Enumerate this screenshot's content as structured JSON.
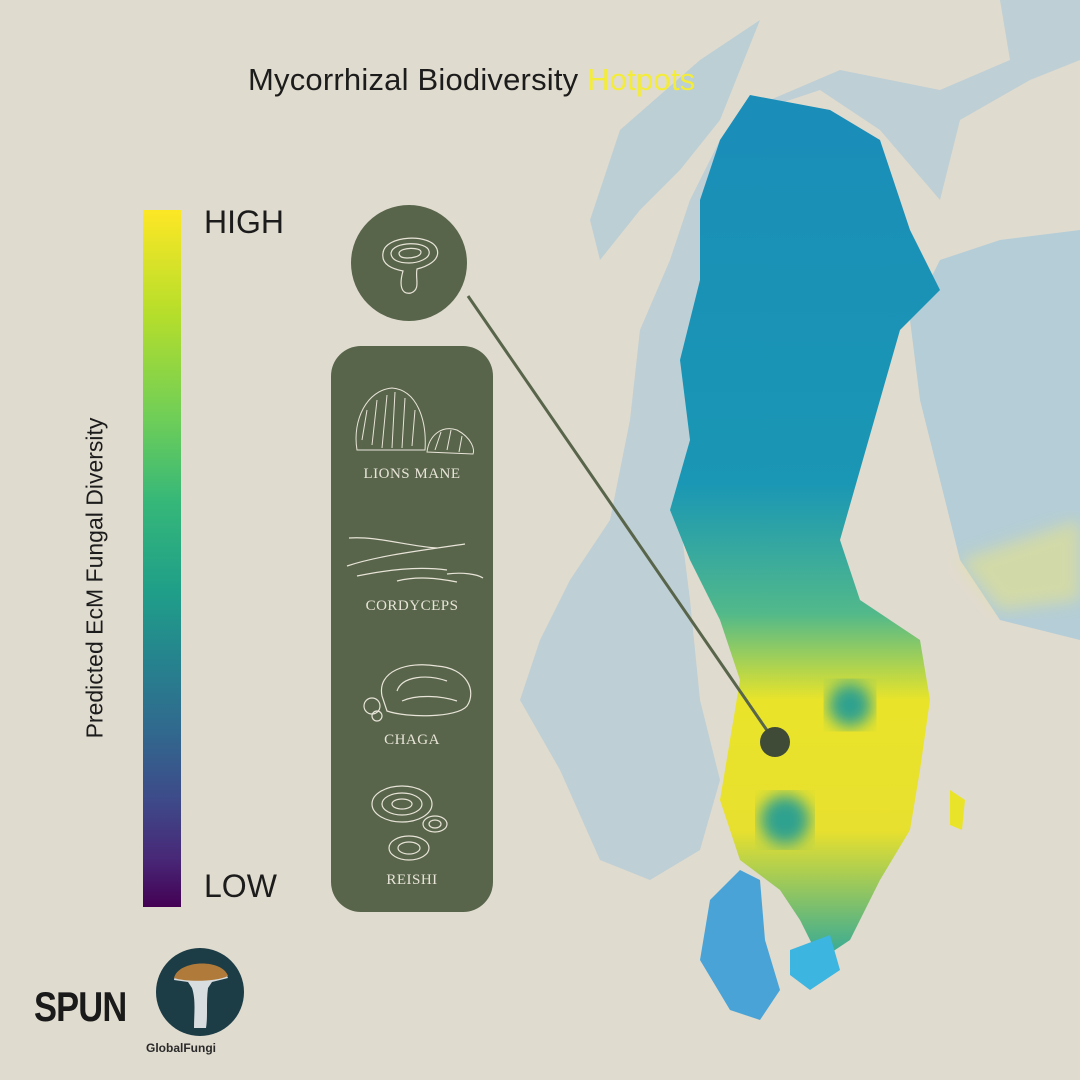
{
  "title": {
    "main": "Mycorrhizal Biodiversity",
    "highlight": "Hotpots"
  },
  "legend": {
    "high_label": "HIGH",
    "low_label": "LOW",
    "axis_label": "Predicted EcM Fungal Diversity",
    "colormap": [
      "#fde725",
      "#35b779",
      "#26828e",
      "#3e4989",
      "#440154"
    ]
  },
  "callout": {
    "icon": "reishi-mushroom-icon"
  },
  "species": [
    {
      "label": "LIONS MANE",
      "icon": "lions-mane-icon"
    },
    {
      "label": "CORDYCEPS",
      "icon": "cordyceps-icon"
    },
    {
      "label": "CHAGA",
      "icon": "chaga-icon"
    },
    {
      "label": "REISHI",
      "icon": "reishi-icon"
    }
  ],
  "logos": {
    "spun": "SPUN",
    "globalfungi": "GlobalFungi"
  },
  "colors": {
    "panel": "#58654b",
    "background": "#e0dbcf",
    "high": "#fde725",
    "low": "#440154"
  }
}
